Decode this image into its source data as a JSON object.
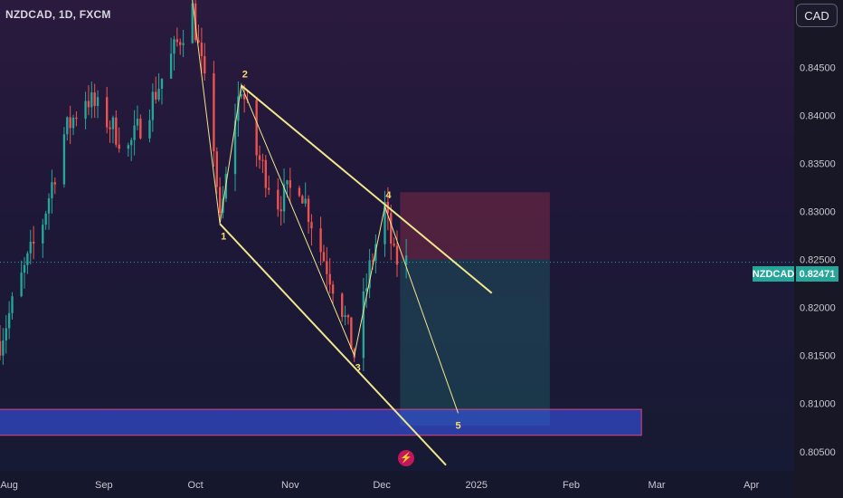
{
  "header": {
    "symbol_title": "NZDCAD, 1D, FXCM",
    "currency_button": "CAD"
  },
  "price_tag": {
    "symbol": "NZDCAD",
    "value": "0.82471"
  },
  "colors": {
    "up": "#26a69a",
    "down": "#ef5350",
    "wave": "#f0e68c",
    "label": "#f5dc78",
    "stop_zone": "#b23350",
    "target_zone": "#26a69a",
    "support_zone": "#3d5afe",
    "last_price_line": "#26a69a"
  },
  "icons": {
    "flash": "lightning-icon"
  },
  "chart_data": {
    "type": "candlestick",
    "title": "NZDCAD, 1D, FXCM",
    "x_start": "2024-07-29",
    "x_end": "2025-04-15",
    "ylim": [
      0.803,
      0.852
    ],
    "y_ticks": [
      "0.85000",
      "0.84500",
      "0.84000",
      "0.83500",
      "0.83000",
      "0.82500",
      "0.82000",
      "0.81500",
      "0.81000",
      "0.80500"
    ],
    "x_ticks": [
      {
        "label": "Aug",
        "date": "2024-08-01"
      },
      {
        "label": "Sep",
        "date": "2024-09-01"
      },
      {
        "label": "Oct",
        "date": "2024-10-01"
      },
      {
        "label": "Nov",
        "date": "2024-11-01"
      },
      {
        "label": "Dec",
        "date": "2024-12-01"
      },
      {
        "label": "2025",
        "date": "2025-01-01"
      },
      {
        "label": "Feb",
        "date": "2025-02-01"
      },
      {
        "label": "Mar",
        "date": "2025-03-01"
      },
      {
        "label": "Apr",
        "date": "2025-04-01"
      }
    ],
    "last_price": 0.82471,
    "grid": false,
    "anchors": [
      {
        "date": "2024-07-29",
        "price": 0.8165
      },
      {
        "date": "2024-08-05",
        "price": 0.823
      },
      {
        "date": "2024-08-12",
        "price": 0.829
      },
      {
        "date": "2024-08-19",
        "price": 0.838
      },
      {
        "date": "2024-08-26",
        "price": 0.842
      },
      {
        "date": "2024-09-02",
        "price": 0.8395
      },
      {
        "date": "2024-09-09",
        "price": 0.8365
      },
      {
        "date": "2024-09-16",
        "price": 0.841
      },
      {
        "date": "2024-09-23",
        "price": 0.846
      },
      {
        "date": "2024-09-30",
        "price": 0.851
      },
      {
        "date": "2024-10-07",
        "price": 0.837
      },
      {
        "date": "2024-10-09",
        "price": 0.8287
      },
      {
        "date": "2024-10-14",
        "price": 0.84
      },
      {
        "date": "2024-10-16",
        "price": 0.8431
      },
      {
        "date": "2024-10-21",
        "price": 0.836
      },
      {
        "date": "2024-10-28",
        "price": 0.831
      },
      {
        "date": "2024-11-04",
        "price": 0.833
      },
      {
        "date": "2024-11-11",
        "price": 0.826
      },
      {
        "date": "2024-11-18",
        "price": 0.82
      },
      {
        "date": "2024-11-22",
        "price": 0.815
      },
      {
        "date": "2024-11-27",
        "price": 0.824
      },
      {
        "date": "2024-12-02",
        "price": 0.8305
      },
      {
        "date": "2024-12-05",
        "price": 0.825
      },
      {
        "date": "2024-12-09",
        "price": 0.8247
      }
    ],
    "wave_count": [
      {
        "label": "1",
        "date": "2024-10-09",
        "price": 0.8287
      },
      {
        "label": "2",
        "date": "2024-10-16",
        "price": 0.8431
      },
      {
        "label": "3",
        "date": "2024-11-22",
        "price": 0.815
      },
      {
        "label": "4",
        "date": "2024-12-02",
        "price": 0.8305
      },
      {
        "label": "5",
        "date": "2024-12-26",
        "price": 0.809
      }
    ],
    "channel": {
      "upper": [
        {
          "date": "2024-10-16",
          "price": 0.8431
        },
        {
          "date": "2025-01-06",
          "price": 0.8215
        }
      ],
      "lower": [
        {
          "date": "2024-10-09",
          "price": 0.8287
        },
        {
          "date": "2024-12-22",
          "price": 0.8036
        }
      ]
    },
    "position": {
      "start": "2024-12-07",
      "end": "2025-01-25",
      "entry": 0.825,
      "stop": 0.832,
      "target": 0.8077
    },
    "support_zone": {
      "from": "2024-07-25",
      "to": "2025-02-24",
      "low": 0.8067,
      "high": 0.8094
    },
    "last_candle_date": "2024-12-09"
  }
}
